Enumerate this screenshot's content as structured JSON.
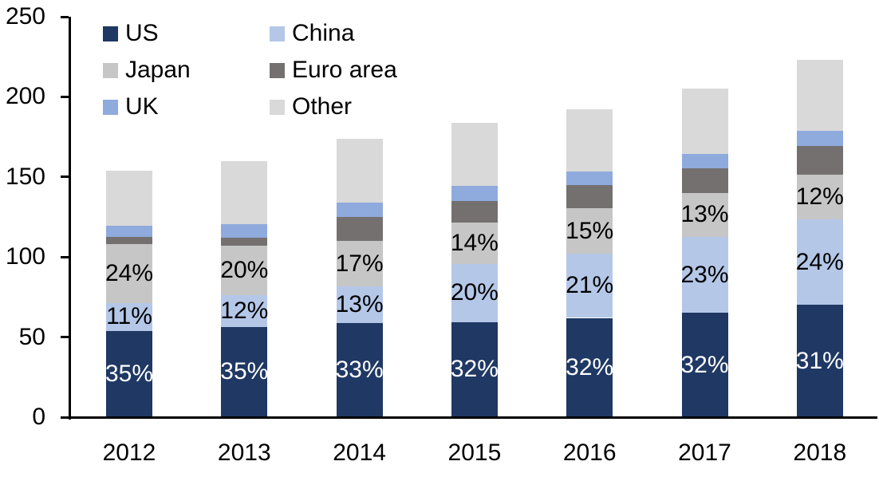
{
  "figure": {
    "background": "#ffffff",
    "axis_color": "#000000",
    "text_color": "#000000"
  },
  "legend": {
    "items": [
      {
        "label": "US",
        "color": "#1f3864"
      },
      {
        "label": "China",
        "color": "#b4c7e7"
      },
      {
        "label": "Japan",
        "color": "#c6c6c6"
      },
      {
        "label": "Euro area",
        "color": "#747070"
      },
      {
        "label": "UK",
        "color": "#8faadc"
      },
      {
        "label": "Other",
        "color": "#d9d9d9"
      }
    ]
  },
  "chart_data": {
    "type": "bar",
    "stacked": true,
    "title": "",
    "xlabel": "",
    "ylabel": "",
    "categories": [
      "2012",
      "2013",
      "2014",
      "2015",
      "2016",
      "2017",
      "2018"
    ],
    "series": [
      {
        "name": "US",
        "color": "#1f3864",
        "values": [
          54,
          56.5,
          59,
          59.5,
          62,
          65,
          70
        ],
        "pct_labels": [
          "35%",
          "35%",
          "33%",
          "32%",
          "32%",
          "32%",
          "31%"
        ],
        "label_color": "#ffffff"
      },
      {
        "name": "China",
        "color": "#b4c7e7",
        "values": [
          17,
          19.5,
          22.5,
          36,
          40,
          47.5,
          53.5
        ],
        "pct_labels": [
          "11%",
          "12%",
          "13%",
          "20%",
          "21%",
          "23%",
          "24%"
        ],
        "label_color": "#000000"
      },
      {
        "name": "Japan",
        "color": "#c6c6c6",
        "values": [
          37,
          31,
          28.5,
          26,
          28.5,
          27.5,
          28
        ],
        "pct_labels": [
          "24%",
          "20%",
          "17%",
          "14%",
          "15%",
          "13%",
          "12%"
        ],
        "label_color": "#000000"
      },
      {
        "name": "Euro area",
        "color": "#747070",
        "values": [
          4.5,
          5,
          15,
          13.5,
          14.5,
          15.5,
          18
        ]
      },
      {
        "name": "UK",
        "color": "#8faadc",
        "values": [
          7,
          8.5,
          9,
          9.5,
          8.5,
          9,
          9.5
        ]
      },
      {
        "name": "Other",
        "color": "#d9d9d9",
        "values": [
          34.5,
          39.5,
          40,
          39.5,
          38.5,
          40.5,
          44
        ]
      }
    ],
    "totals": [
      154,
      160,
      174,
      184,
      192,
      205,
      223
    ],
    "ylim": [
      0,
      250
    ],
    "yticks": [
      0,
      50,
      100,
      150,
      200,
      250
    ],
    "grid": false,
    "legend_position": "top-left-inside"
  }
}
